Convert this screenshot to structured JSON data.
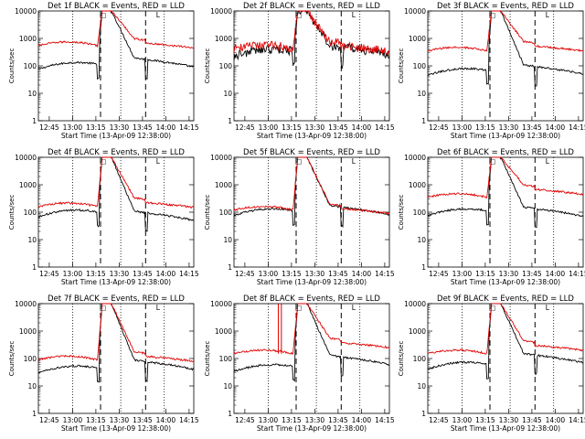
{
  "chart_data": [
    {
      "type": "line",
      "title": "Det 1f BLACK = Events, RED = LLD",
      "xlabel": "Start Time (13-Apr-09 12:38:00)",
      "ylabel": "Counts/sec",
      "yscale": "log",
      "ylim": [
        1,
        10000
      ],
      "x_ticks": [
        "12:45",
        "13:00",
        "13:15",
        "13:30",
        "13:45",
        "14:00",
        "14:15"
      ],
      "y_ticks": [
        "1",
        "10",
        "100",
        "1000",
        "10000"
      ],
      "series": [
        {
          "name": "Events",
          "color": "#000000",
          "base": 100,
          "peak": 10000,
          "tail": 90
        },
        {
          "name": "LLD",
          "color": "#e00000",
          "base": 550,
          "peak": 10000,
          "tail": 450
        }
      ]
    },
    {
      "type": "line",
      "title": "Det 2f BLACK = Events, RED = LLD",
      "xlabel": "Start Time (13-Apr-09 12:38:00)",
      "ylabel": "Counts/sec",
      "yscale": "log",
      "ylim": [
        1,
        10000
      ],
      "x_ticks": [
        "12:45",
        "13:00",
        "13:15",
        "13:30",
        "13:45",
        "14:00",
        "14:15"
      ],
      "y_ticks": [
        "1",
        "10",
        "100",
        "1000",
        "10000"
      ],
      "series": [
        {
          "name": "Events",
          "color": "#000000",
          "base": 300,
          "peak": 10000,
          "tail": 250
        },
        {
          "name": "LLD",
          "color": "#e00000",
          "base": 420,
          "peak": 10000,
          "tail": 350
        }
      ]
    },
    {
      "type": "line",
      "title": "Det 3f BLACK = Events, RED = LLD",
      "xlabel": "Start Time (13-Apr-09 12:38:00)",
      "ylabel": "Counts/sec",
      "yscale": "log",
      "ylim": [
        1,
        10000
      ],
      "x_ticks": [
        "12:45",
        "13:00",
        "13:15",
        "13:30",
        "13:45",
        "14:00",
        "14:15"
      ],
      "y_ticks": [
        "1",
        "10",
        "100",
        "1000",
        "10000"
      ],
      "series": [
        {
          "name": "Events",
          "color": "#000000",
          "base": 60,
          "peak": 10000,
          "tail": 50
        },
        {
          "name": "LLD",
          "color": "#e00000",
          "base": 350,
          "peak": 10000,
          "tail": 350
        }
      ]
    },
    {
      "type": "line",
      "title": "Det 4f BLACK = Events, RED = LLD",
      "xlabel": "Start Time (13-Apr-09 12:38:00)",
      "ylabel": "Counts/sec",
      "yscale": "log",
      "ylim": [
        1,
        10000
      ],
      "x_ticks": [
        "12:45",
        "13:00",
        "13:15",
        "13:30",
        "13:45",
        "14:00",
        "14:15"
      ],
      "y_ticks": [
        "1",
        "10",
        "100",
        "1000",
        "10000"
      ],
      "series": [
        {
          "name": "Events",
          "color": "#000000",
          "base": 90,
          "peak": 10000,
          "tail": 50
        },
        {
          "name": "LLD",
          "color": "#e00000",
          "base": 160,
          "peak": 10000,
          "tail": 150
        }
      ]
    },
    {
      "type": "line",
      "title": "Det 5f BLACK = Events, RED = LLD",
      "xlabel": "Start Time (13-Apr-09 12:38:00)",
      "ylabel": "Counts/sec",
      "yscale": "log",
      "ylim": [
        1,
        10000
      ],
      "x_ticks": [
        "12:45",
        "13:00",
        "13:15",
        "13:30",
        "13:45",
        "14:00",
        "14:15"
      ],
      "y_ticks": [
        "1",
        "10",
        "100",
        "1000",
        "10000"
      ],
      "series": [
        {
          "name": "Events",
          "color": "#000000",
          "base": 100,
          "peak": 10000,
          "tail": 80
        },
        {
          "name": "LLD",
          "color": "#e00000",
          "base": 120,
          "peak": 10000,
          "tail": 90
        }
      ]
    },
    {
      "type": "line",
      "title": "Det 6f BLACK = Events, RED = LLD",
      "xlabel": "Start Time (13-Apr-09 12:38:00)",
      "ylabel": "Counts/sec",
      "yscale": "log",
      "ylim": [
        1,
        10000
      ],
      "x_ticks": [
        "12:45",
        "13:00",
        "13:15",
        "13:30",
        "13:45",
        "14:00",
        "14:15"
      ],
      "y_ticks": [
        "1",
        "10",
        "100",
        "1000",
        "10000"
      ],
      "series": [
        {
          "name": "Events",
          "color": "#000000",
          "base": 100,
          "peak": 10000,
          "tail": 70
        },
        {
          "name": "LLD",
          "color": "#e00000",
          "base": 350,
          "peak": 10000,
          "tail": 450
        }
      ]
    },
    {
      "type": "line",
      "title": "Det 7f BLACK = Events, RED = LLD",
      "xlabel": "Start Time (13-Apr-09 12:38:00)",
      "ylabel": "Counts/sec",
      "yscale": "log",
      "ylim": [
        1,
        10000
      ],
      "x_ticks": [
        "12:45",
        "13:00",
        "13:15",
        "13:30",
        "13:45",
        "14:00",
        "14:15"
      ],
      "y_ticks": [
        "1",
        "10",
        "100",
        "1000",
        "10000"
      ],
      "series": [
        {
          "name": "Events",
          "color": "#000000",
          "base": 40,
          "peak": 10000,
          "tail": 40
        },
        {
          "name": "LLD",
          "color": "#e00000",
          "base": 90,
          "peak": 10000,
          "tail": 80
        }
      ]
    },
    {
      "type": "line",
      "title": "Det 8f BLACK = Events, RED = LLD",
      "xlabel": "Start Time (13-Apr-09 12:38:00)",
      "ylabel": "Counts/sec",
      "yscale": "log",
      "ylim": [
        1,
        10000
      ],
      "x_ticks": [
        "12:45",
        "13:00",
        "13:15",
        "13:30",
        "13:45",
        "14:00",
        "14:15"
      ],
      "y_ticks": [
        "1",
        "10",
        "100",
        "1000",
        "10000"
      ],
      "series": [
        {
          "name": "Events",
          "color": "#000000",
          "base": 45,
          "peak": 10000,
          "tail": 60
        },
        {
          "name": "LLD",
          "color": "#e00000",
          "base": 150,
          "peak": 10000,
          "tail": 250
        }
      ]
    },
    {
      "type": "line",
      "title": "Det 9f BLACK = Events, RED = LLD",
      "xlabel": "Start Time (13-Apr-09 12:38:00)",
      "ylabel": "Counts/sec",
      "yscale": "log",
      "ylim": [
        1,
        10000
      ],
      "x_ticks": [
        "12:45",
        "13:00",
        "13:15",
        "13:30",
        "13:45",
        "14:00",
        "14:15"
      ],
      "y_ticks": [
        "1",
        "10",
        "100",
        "1000",
        "10000"
      ],
      "series": [
        {
          "name": "Events",
          "color": "#000000",
          "base": 55,
          "peak": 10000,
          "tail": 70
        },
        {
          "name": "LLD",
          "color": "#e00000",
          "base": 150,
          "peak": 10000,
          "tail": 200
        }
      ]
    }
  ],
  "markers": {
    "flare_symbol": "□",
    "end_symbol": "L"
  }
}
